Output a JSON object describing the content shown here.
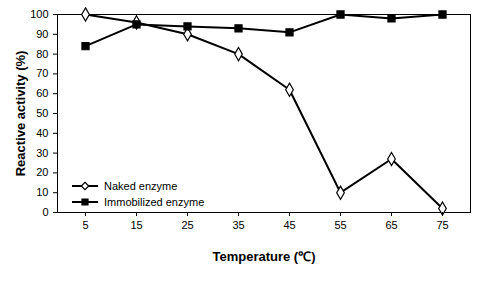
{
  "chart_data": {
    "type": "line",
    "x_label": "Temperature (℃)",
    "y_label": "Reactive activity (%)",
    "categories": [
      "5",
      "15",
      "25",
      "35",
      "45",
      "55",
      "65",
      "75"
    ],
    "series": [
      {
        "name": "Naked enzyme",
        "color": "#000000",
        "marker": "diamond",
        "values": [
          100,
          96,
          90,
          80,
          62,
          10,
          27,
          2
        ]
      },
      {
        "name": "Immobilized enzyme",
        "color": "#000000",
        "marker": "square",
        "values": [
          84,
          95,
          94,
          93,
          91,
          100,
          98,
          100
        ]
      }
    ],
    "ylim": [
      0,
      100
    ],
    "yticks": [
      0,
      10,
      20,
      30,
      40,
      50,
      60,
      70,
      80,
      90,
      100
    ],
    "grid": false,
    "legend": "lower left"
  }
}
